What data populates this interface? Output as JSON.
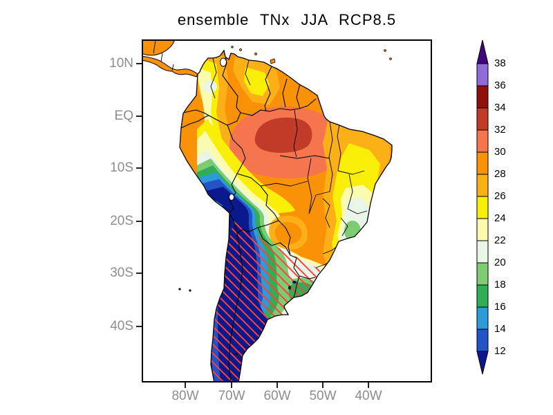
{
  "title": "ensemble TNx JJA RCP8.5",
  "x_axis": {
    "ticks": [
      "80W",
      "70W",
      "60W",
      "50W",
      "40W"
    ]
  },
  "y_axis": {
    "ticks": [
      "10N",
      "EQ",
      "10S",
      "20S",
      "30S",
      "40S"
    ]
  },
  "colorbar": {
    "tick_labels": [
      "38",
      "36",
      "34",
      "32",
      "30",
      "28",
      "26",
      "24",
      "22",
      "20",
      "18",
      "16",
      "14",
      "12"
    ],
    "segments": [
      {
        "range": "36-38",
        "color": "#8F6BD9"
      },
      {
        "range": "34-36",
        "color": "#8F100C"
      },
      {
        "range": "32-34",
        "color": "#C23B28"
      },
      {
        "range": "30-32",
        "color": "#F5764E"
      },
      {
        "range": "28-30",
        "color": "#FA9207"
      },
      {
        "range": "26-28",
        "color": "#FBB018"
      },
      {
        "range": "24-26",
        "color": "#F8EE08"
      },
      {
        "range": "22-24",
        "color": "#FBFBB0"
      },
      {
        "range": "20-22",
        "color": "#E9F5E7"
      },
      {
        "range": "18-20",
        "color": "#7ECC72"
      },
      {
        "range": "16-18",
        "color": "#2FAE53"
      },
      {
        "range": "14-16",
        "color": "#2E9BD9"
      },
      {
        "range": "12-14",
        "color": "#2353C4"
      }
    ],
    "above_color": "#43067E",
    "below_color": "#0A1A8C"
  },
  "palette": {
    "b_gt38": "#43067E",
    "b36_38": "#8F6BD9",
    "b34_36": "#8F100C",
    "b32_34": "#C23B28",
    "b30_32": "#F5764E",
    "b28_30": "#FA9207",
    "b26_28": "#FBB018",
    "b24_26": "#F8EE08",
    "b22_24": "#FBFBB0",
    "b20_22": "#E9F5E7",
    "b18_20": "#7ECC72",
    "b16_18": "#2FAE53",
    "b14_16": "#2E9BD9",
    "b12_14": "#2353C4",
    "b_lt12": "#0A1A8C",
    "hatch": "#FF4040",
    "border": "#000000",
    "ocean": "#FFFFFF",
    "axis_label": "#8C8C8C"
  },
  "chart_data": {
    "type": "heatmap",
    "title": "ensemble TNx JJA RCP8.5",
    "variable": "TNx",
    "season": "JJA",
    "scenario": "RCP8.5",
    "x_ticks": [
      "80W",
      "70W",
      "60W",
      "50W",
      "40W"
    ],
    "y_ticks": [
      "10N",
      "EQ",
      "10S",
      "20S",
      "30S",
      "40S"
    ],
    "contour_levels": [
      12,
      14,
      16,
      18,
      20,
      22,
      24,
      26,
      28,
      30,
      32,
      34,
      36,
      38
    ],
    "legend_position": "right",
    "regions": [
      {
        "area": "central Amazon basin",
        "band": "32-34"
      },
      {
        "area": "Amazon / Orinoco lowlands and Guianas",
        "band": "28-32"
      },
      {
        "area": "Colombian-Peruvian Andes strip",
        "band": "22-26"
      },
      {
        "area": "eastern Brazil interior (Bahia)",
        "band": "24-26"
      },
      {
        "area": "southeast Brazil highlands",
        "band": "18-22"
      },
      {
        "area": "Paraguay / northern Argentina warm tongue",
        "band": "26-30"
      },
      {
        "area": "Uruguay and Pampas",
        "band": "16-20"
      },
      {
        "area": "central Argentina",
        "band": "14-18"
      },
      {
        "area": "high Andes cold tongue (Peru-Bolivia-Chile)",
        "band": "<12-16"
      },
      {
        "area": "Patagonia and southern Chile",
        "band": "<12-14"
      }
    ],
    "overlay": {
      "style": "red diagonal hatching",
      "covers": "southern Andes, Patagonia and northwestern Argentina"
    }
  }
}
